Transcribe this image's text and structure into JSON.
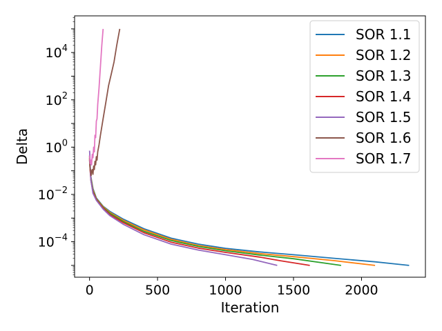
{
  "chart_data": {
    "type": "line",
    "title": "",
    "xlabel": "Iteration",
    "ylabel": "Delta",
    "xlim": [
      -110,
      2470
    ],
    "ylim_log10": [
      -5.5,
      5.55
    ],
    "y_scale": "log",
    "grid": false,
    "legend_position": "upper right",
    "x_ticks": [
      {
        "value": 0,
        "label": "0"
      },
      {
        "value": 500,
        "label": "500"
      },
      {
        "value": 1000,
        "label": "1000"
      },
      {
        "value": 1500,
        "label": "1500"
      },
      {
        "value": 2000,
        "label": "2000"
      }
    ],
    "y_ticks": [
      {
        "exp": 4,
        "base": "10",
        "sup": "4"
      },
      {
        "exp": 2,
        "base": "10",
        "sup": "2"
      },
      {
        "exp": 0,
        "base": "10",
        "sup": "0"
      },
      {
        "exp": -2,
        "base": "10",
        "sup": "−2"
      },
      {
        "exp": -4,
        "base": "10",
        "sup": "−4"
      }
    ],
    "series": [
      {
        "name": "SOR 1.1",
        "color": "#1f77b4",
        "points": [
          [
            0,
            -0.35
          ],
          [
            5,
            -0.85
          ],
          [
            10,
            -1.25
          ],
          [
            25,
            -1.75
          ],
          [
            50,
            -2.15
          ],
          [
            100,
            -2.5
          ],
          [
            150,
            -2.72
          ],
          [
            250,
            -3.05
          ],
          [
            400,
            -3.45
          ],
          [
            600,
            -3.85
          ],
          [
            800,
            -4.1
          ],
          [
            1000,
            -4.28
          ],
          [
            1250,
            -4.43
          ],
          [
            1500,
            -4.55
          ],
          [
            1800,
            -4.7
          ],
          [
            2100,
            -4.85
          ],
          [
            2350,
            -5.0
          ]
        ]
      },
      {
        "name": "SOR 1.2",
        "color": "#ff7f0e",
        "points": [
          [
            0,
            -0.4
          ],
          [
            5,
            -0.9
          ],
          [
            10,
            -1.3
          ],
          [
            25,
            -1.8
          ],
          [
            50,
            -2.18
          ],
          [
            100,
            -2.52
          ],
          [
            150,
            -2.76
          ],
          [
            250,
            -3.1
          ],
          [
            400,
            -3.5
          ],
          [
            600,
            -3.9
          ],
          [
            800,
            -4.16
          ],
          [
            1000,
            -4.33
          ],
          [
            1250,
            -4.5
          ],
          [
            1500,
            -4.63
          ],
          [
            1800,
            -4.8
          ],
          [
            2100,
            -5.0
          ]
        ]
      },
      {
        "name": "SOR 1.3",
        "color": "#2ca02c",
        "points": [
          [
            0,
            -0.45
          ],
          [
            5,
            -0.95
          ],
          [
            10,
            -1.35
          ],
          [
            25,
            -1.85
          ],
          [
            50,
            -2.2
          ],
          [
            100,
            -2.55
          ],
          [
            150,
            -2.8
          ],
          [
            250,
            -3.15
          ],
          [
            400,
            -3.56
          ],
          [
            600,
            -3.95
          ],
          [
            800,
            -4.2
          ],
          [
            1000,
            -4.38
          ],
          [
            1250,
            -4.56
          ],
          [
            1500,
            -4.72
          ],
          [
            1850,
            -5.0
          ]
        ]
      },
      {
        "name": "SOR 1.4",
        "color": "#d62728",
        "points": [
          [
            0,
            -0.5
          ],
          [
            5,
            -1.0
          ],
          [
            10,
            -1.4
          ],
          [
            25,
            -1.9
          ],
          [
            50,
            -2.22
          ],
          [
            100,
            -2.58
          ],
          [
            150,
            -2.85
          ],
          [
            250,
            -3.2
          ],
          [
            400,
            -3.62
          ],
          [
            600,
            -4.02
          ],
          [
            800,
            -4.27
          ],
          [
            1000,
            -4.45
          ],
          [
            1250,
            -4.65
          ],
          [
            1400,
            -4.8
          ],
          [
            1620,
            -5.0
          ]
        ]
      },
      {
        "name": "SOR 1.5",
        "color": "#9467bd",
        "points": [
          [
            0,
            -0.15
          ],
          [
            3,
            -0.4
          ],
          [
            6,
            -0.9
          ],
          [
            10,
            -1.4
          ],
          [
            25,
            -1.95
          ],
          [
            50,
            -2.25
          ],
          [
            100,
            -2.62
          ],
          [
            150,
            -2.9
          ],
          [
            250,
            -3.27
          ],
          [
            400,
            -3.7
          ],
          [
            600,
            -4.1
          ],
          [
            800,
            -4.35
          ],
          [
            1000,
            -4.55
          ],
          [
            1200,
            -4.75
          ],
          [
            1380,
            -5.0
          ]
        ]
      },
      {
        "name": "SOR 1.6",
        "color": "#8c564b",
        "points": [
          [
            0,
            -0.55
          ],
          [
            4,
            -0.9
          ],
          [
            8,
            -1.0
          ],
          [
            12,
            -1.2
          ],
          [
            16,
            -1.0
          ],
          [
            20,
            -0.95
          ],
          [
            25,
            -1.15
          ],
          [
            30,
            -0.8
          ],
          [
            35,
            -0.95
          ],
          [
            40,
            -0.6
          ],
          [
            45,
            -0.75
          ],
          [
            50,
            -0.4
          ],
          [
            55,
            -0.55
          ],
          [
            60,
            -0.2
          ],
          [
            70,
            0.1
          ],
          [
            80,
            0.5
          ],
          [
            100,
            1.2
          ],
          [
            120,
            1.9
          ],
          [
            140,
            2.6
          ],
          [
            160,
            3.1
          ],
          [
            180,
            3.6
          ],
          [
            200,
            4.3
          ],
          [
            222,
            5.0
          ]
        ]
      },
      {
        "name": "SOR 1.7",
        "color": "#e377c2",
        "points": [
          [
            0,
            -0.35
          ],
          [
            5,
            -0.7
          ],
          [
            10,
            -0.55
          ],
          [
            15,
            -0.75
          ],
          [
            20,
            -0.3
          ],
          [
            25,
            -0.45
          ],
          [
            30,
            0.0
          ],
          [
            35,
            -0.2
          ],
          [
            40,
            0.5
          ],
          [
            45,
            0.4
          ],
          [
            50,
            1.1
          ],
          [
            55,
            1.2
          ],
          [
            60,
            1.8
          ],
          [
            70,
            2.5
          ],
          [
            80,
            3.4
          ],
          [
            90,
            4.3
          ],
          [
            100,
            5.0
          ]
        ]
      }
    ]
  }
}
